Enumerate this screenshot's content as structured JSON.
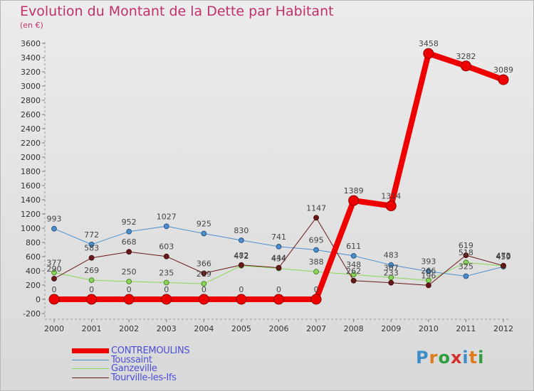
{
  "title": "Evolution du Montant de la Dette par Habitant",
  "subtitle": "(en €)",
  "logo": {
    "text": "Proxiti",
    "colors": [
      "#3c8dc8",
      "#e07b1a",
      "#2e9e3e",
      "#d42f2f",
      "#3c8dc8",
      "#e07b1a",
      "#2e9e3e"
    ]
  },
  "chart_data": {
    "type": "line",
    "x": [
      "2000",
      "2001",
      "2002",
      "2003",
      "2004",
      "2005",
      "2006",
      "2007",
      "2008",
      "2009",
      "2010",
      "2011",
      "2012"
    ],
    "ylim": [
      -200,
      3600
    ],
    "yticks": [
      -200,
      0,
      200,
      400,
      600,
      800,
      1000,
      1200,
      1400,
      1600,
      1800,
      2000,
      2200,
      2400,
      2600,
      2800,
      3000,
      3200,
      3400,
      3600
    ],
    "grid": false,
    "legend_position": "bottom-left",
    "series": [
      {
        "name": "CONTREMOULINS",
        "color": "#ee0000",
        "values": [
          0,
          0,
          0,
          0,
          0,
          0,
          0,
          0,
          1389,
          1314,
          3458,
          3282,
          3089
        ],
        "labels": [
          "0",
          "0",
          "0",
          "0",
          "0",
          "0",
          "0",
          "0",
          "1389",
          "1314",
          "3458",
          "3282",
          "3089"
        ]
      },
      {
        "name": "Toussaint",
        "color": "#4a8fd0",
        "values": [
          993,
          772,
          952,
          1027,
          925,
          830,
          741,
          695,
          611,
          483,
          393,
          325,
          459
        ],
        "labels": [
          "993",
          "772",
          "952",
          "1027",
          "925",
          "830",
          "741",
          "695",
          "611",
          "483",
          "393",
          "325",
          "459"
        ]
      },
      {
        "name": "Ganzeville",
        "color": "#88d855",
        "values": [
          377,
          269,
          250,
          235,
          219,
          472,
          434,
          388,
          348,
          307,
          266,
          518,
          470
        ],
        "labels": [
          "377",
          "269",
          "250",
          "235",
          "219",
          "472",
          "434",
          "388",
          "348",
          "307",
          "266",
          "518",
          "470"
        ]
      },
      {
        "name": "Tourville-les-Ifs",
        "color": "#6b1818",
        "values": [
          290,
          583,
          668,
          603,
          366,
          482,
          444,
          1147,
          262,
          233,
          196,
          619,
          473
        ],
        "labels": [
          "290",
          "583",
          "668",
          "603",
          "366",
          "482",
          "444",
          "1147",
          "262",
          "233",
          "196",
          "619",
          "473"
        ]
      }
    ]
  }
}
